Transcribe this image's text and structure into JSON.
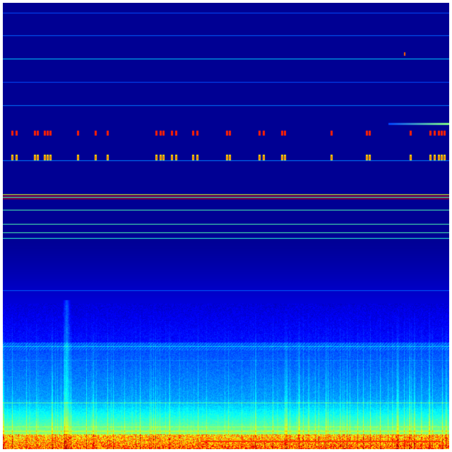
{
  "image": {
    "kind": "spectrogram",
    "colormap": "jet",
    "colors": {
      "background": "#00007f",
      "low": "#0000ff",
      "mid": "#00ffff",
      "high": "#ffff00",
      "peak": "#ff0000"
    }
  }
}
